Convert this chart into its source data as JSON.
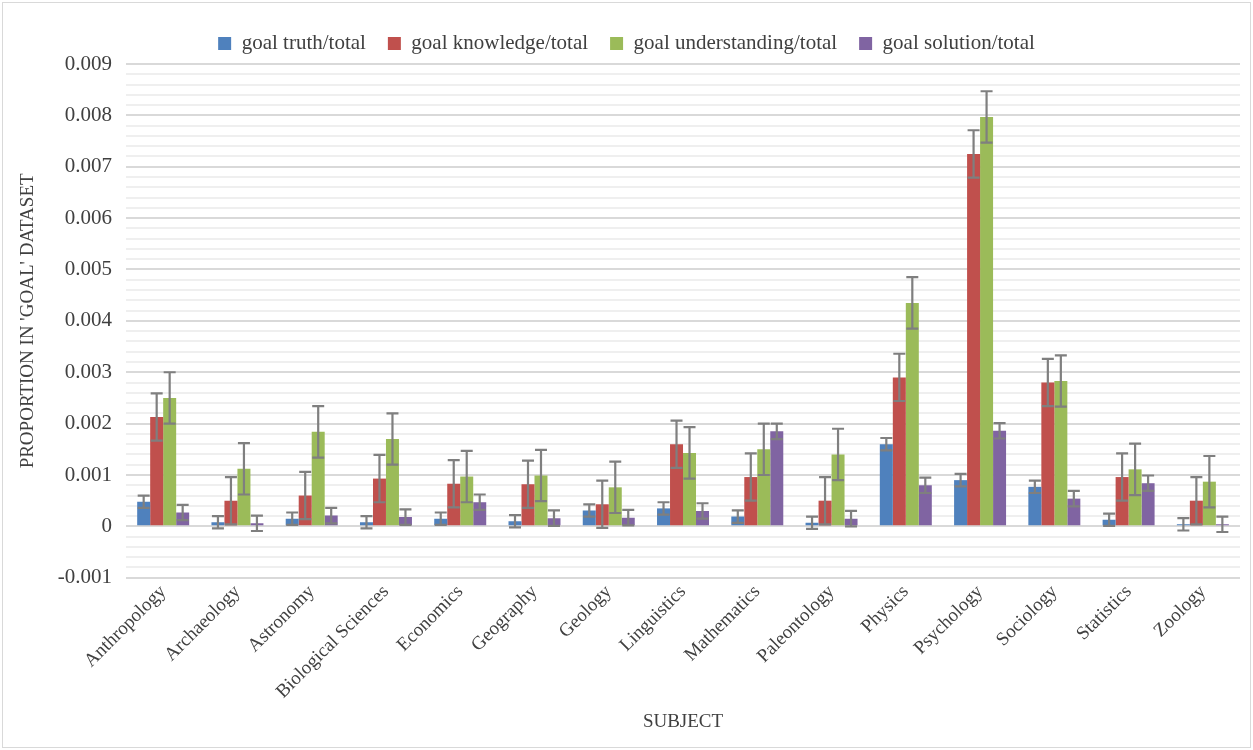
{
  "chart_data": {
    "type": "bar",
    "xlabel": "SUBJECT",
    "ylabel": "PROPORTION IN 'GOAL' DATASET",
    "categories": [
      "Anthropology",
      "Archaeology",
      "Astronomy",
      "Biological Sciences",
      "Economics",
      "Geography",
      "Geology",
      "Linguistics",
      "Mathematics",
      "Paleontology",
      "Physics",
      "Psychology",
      "Sociology",
      "Statistics",
      "Zoology"
    ],
    "series": [
      {
        "name": "goal truth/total",
        "color": "#4f81bd",
        "values": [
          0.00048,
          8e-05,
          0.00015,
          8e-05,
          0.00015,
          0.0001,
          0.00031,
          0.00035,
          0.00019,
          7e-05,
          0.0016,
          0.0009,
          0.00077,
          0.00013,
          4e-05
        ],
        "errors": [
          0.00012,
          0.00012,
          0.00012,
          0.00012,
          0.00012,
          0.00012,
          0.00012,
          0.00012,
          0.00012,
          0.00012,
          0.00012,
          0.00012,
          0.00012,
          0.00012,
          0.00012
        ]
      },
      {
        "name": "goal knowledge/total",
        "color": "#c0504d",
        "values": [
          0.00213,
          0.0005,
          0.0006,
          0.00093,
          0.00083,
          0.00082,
          0.00043,
          0.0016,
          0.00096,
          0.0005,
          0.0029,
          0.00725,
          0.0028,
          0.00096,
          0.0005
        ],
        "errors": [
          0.00046,
          0.00046,
          0.00046,
          0.00046,
          0.00046,
          0.00046,
          0.00046,
          0.00046,
          0.00046,
          0.00046,
          0.00046,
          0.00046,
          0.00046,
          0.00046,
          0.00046
        ]
      },
      {
        "name": "goal understanding/total",
        "color": "#9bbb59",
        "values": [
          0.0025,
          0.00112,
          0.00184,
          0.0017,
          0.00097,
          0.00099,
          0.00076,
          0.00143,
          0.0015,
          0.0014,
          0.00435,
          0.00797,
          0.00283,
          0.00111,
          0.00087
        ],
        "errors": [
          0.0005,
          0.0005,
          0.0005,
          0.0005,
          0.0005,
          0.0005,
          0.0005,
          0.0005,
          0.0005,
          0.0005,
          0.0005,
          0.0005,
          0.0005,
          0.0005,
          0.0005
        ]
      },
      {
        "name": "goal solution/total",
        "color": "#8064a2",
        "values": [
          0.00027,
          6e-05,
          0.00021,
          0.00018,
          0.00047,
          0.00016,
          0.00017,
          0.0003,
          0.00185,
          0.00015,
          0.0008,
          0.00186,
          0.00054,
          0.00084,
          4e-05
        ],
        "errors": [
          0.00015,
          0.00015,
          0.00015,
          0.00015,
          0.00015,
          0.00015,
          0.00015,
          0.00015,
          0.00015,
          0.00015,
          0.00015,
          0.00015,
          0.00015,
          0.00015,
          0.00015
        ]
      }
    ],
    "ylim": [
      -0.001,
      0.009
    ],
    "yticks": [
      -0.001,
      {
        "value": -0.0008,
        "label": null
      },
      {
        "value": -0.0006,
        "label": null
      },
      {
        "value": -0.0004,
        "label": null
      },
      {
        "value": -0.0002,
        "label": null
      },
      0,
      {
        "value": 0.0002,
        "label": null
      },
      {
        "value": 0.0004,
        "label": null
      },
      {
        "value": 0.0006,
        "label": null
      },
      {
        "value": 0.0008,
        "label": null
      },
      0.001,
      {
        "value": 0.0012,
        "label": null
      },
      {
        "value": 0.0014,
        "label": null
      },
      {
        "value": 0.0016,
        "label": null
      },
      {
        "value": 0.0018,
        "label": null
      },
      0.002,
      {
        "value": 0.0022,
        "label": null
      },
      {
        "value": 0.0024,
        "label": null
      },
      {
        "value": 0.0026,
        "label": null
      },
      {
        "value": 0.0028,
        "label": null
      },
      0.003,
      {
        "value": 0.0032,
        "label": null
      },
      {
        "value": 0.0034,
        "label": null
      },
      {
        "value": 0.0036,
        "label": null
      },
      {
        "value": 0.0038,
        "label": null
      },
      0.004,
      {
        "value": 0.0042,
        "label": null
      },
      {
        "value": 0.0044,
        "label": null
      },
      {
        "value": 0.0046,
        "label": null
      },
      {
        "value": 0.0048,
        "label": null
      },
      0.005,
      {
        "value": 0.0052,
        "label": null
      },
      {
        "value": 0.0054,
        "label": null
      },
      {
        "value": 0.0056,
        "label": null
      },
      {
        "value": 0.0058,
        "label": null
      },
      0.006,
      {
        "value": 0.0062,
        "label": null
      },
      {
        "value": 0.0064,
        "label": null
      },
      {
        "value": 0.0066,
        "label": null
      },
      {
        "value": 0.0068,
        "label": null
      },
      0.007,
      {
        "value": 0.0072,
        "label": null
      },
      {
        "value": 0.0074,
        "label": null
      },
      {
        "value": 0.0076,
        "label": null
      },
      {
        "value": 0.0078,
        "label": null
      },
      0.008,
      {
        "value": 0.0082,
        "label": null
      },
      {
        "value": 0.0084,
        "label": null
      },
      {
        "value": 0.0086,
        "label": null
      },
      {
        "value": 0.0088,
        "label": null
      },
      0.009
    ],
    "grid": "y",
    "legend": "top"
  }
}
